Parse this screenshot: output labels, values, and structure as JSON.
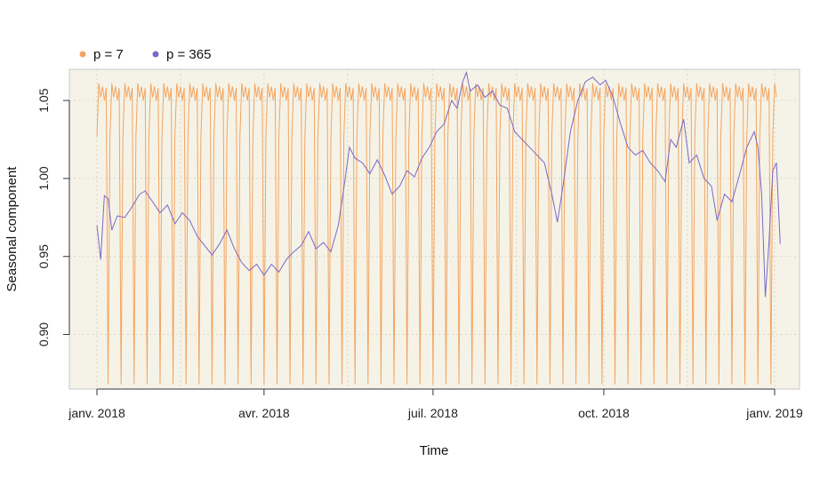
{
  "chart_data": {
    "type": "line",
    "title": "",
    "xlabel": "Time",
    "ylabel": "Seasonal component",
    "x_ticks": [
      "janv. 2018",
      "avr. 2018",
      "juil. 2018",
      "oct. 2018",
      "janv. 2019"
    ],
    "x_range": [
      "2018-01-01",
      "2019-01-01"
    ],
    "ylim": [
      0.865,
      1.07
    ],
    "y_ticks": [
      "0.90",
      "0.95",
      "1.00",
      "1.05"
    ],
    "grid": true,
    "legend_position": "top-left",
    "background": "#f5f3e7",
    "series": [
      {
        "name": "p = 7",
        "color": "#f4a460",
        "period_days": 7,
        "weekly_pattern": [
          1.027,
          1.061,
          1.052,
          1.059,
          1.05,
          1.058,
          0.868
        ]
      },
      {
        "name": "p = 365",
        "color": "#7b68c8",
        "points": [
          [
            "2018-01-01",
            0.97
          ],
          [
            "2018-01-03",
            0.948
          ],
          [
            "2018-01-05",
            0.989
          ],
          [
            "2018-01-07",
            0.987
          ],
          [
            "2018-01-09",
            0.967
          ],
          [
            "2018-01-12",
            0.976
          ],
          [
            "2018-01-16",
            0.975
          ],
          [
            "2018-01-20",
            0.982
          ],
          [
            "2018-01-24",
            0.99
          ],
          [
            "2018-01-27",
            0.992
          ],
          [
            "2018-01-31",
            0.985
          ],
          [
            "2018-02-04",
            0.978
          ],
          [
            "2018-02-08",
            0.983
          ],
          [
            "2018-02-12",
            0.971
          ],
          [
            "2018-02-16",
            0.978
          ],
          [
            "2018-02-20",
            0.973
          ],
          [
            "2018-02-24",
            0.963
          ],
          [
            "2018-02-28",
            0.957
          ],
          [
            "2018-03-04",
            0.951
          ],
          [
            "2018-03-08",
            0.958
          ],
          [
            "2018-03-12",
            0.967
          ],
          [
            "2018-03-16",
            0.955
          ],
          [
            "2018-03-20",
            0.946
          ],
          [
            "2018-03-24",
            0.941
          ],
          [
            "2018-03-28",
            0.945
          ],
          [
            "2018-04-01",
            0.938
          ],
          [
            "2018-04-05",
            0.945
          ],
          [
            "2018-04-09",
            0.94
          ],
          [
            "2018-04-13",
            0.948
          ],
          [
            "2018-04-17",
            0.953
          ],
          [
            "2018-04-21",
            0.957
          ],
          [
            "2018-04-25",
            0.966
          ],
          [
            "2018-04-29",
            0.955
          ],
          [
            "2018-05-03",
            0.959
          ],
          [
            "2018-05-07",
            0.953
          ],
          [
            "2018-05-11",
            0.97
          ],
          [
            "2018-05-14",
            0.994
          ],
          [
            "2018-05-17",
            1.02
          ],
          [
            "2018-05-20",
            1.013
          ],
          [
            "2018-05-24",
            1.01
          ],
          [
            "2018-05-28",
            1.003
          ],
          [
            "2018-06-01",
            1.012
          ],
          [
            "2018-06-05",
            1.002
          ],
          [
            "2018-06-09",
            0.99
          ],
          [
            "2018-06-13",
            0.995
          ],
          [
            "2018-06-17",
            1.005
          ],
          [
            "2018-06-21",
            1.001
          ],
          [
            "2018-06-25",
            1.013
          ],
          [
            "2018-06-29",
            1.02
          ],
          [
            "2018-07-03",
            1.03
          ],
          [
            "2018-07-07",
            1.035
          ],
          [
            "2018-07-11",
            1.05
          ],
          [
            "2018-07-14",
            1.045
          ],
          [
            "2018-07-17",
            1.062
          ],
          [
            "2018-07-19",
            1.068
          ],
          [
            "2018-07-21",
            1.056
          ],
          [
            "2018-07-25",
            1.06
          ],
          [
            "2018-07-29",
            1.052
          ],
          [
            "2018-08-02",
            1.056
          ],
          [
            "2018-08-06",
            1.047
          ],
          [
            "2018-08-10",
            1.045
          ],
          [
            "2018-08-14",
            1.03
          ],
          [
            "2018-08-18",
            1.025
          ],
          [
            "2018-08-22",
            1.02
          ],
          [
            "2018-08-26",
            1.015
          ],
          [
            "2018-08-30",
            1.01
          ],
          [
            "2018-09-03",
            0.99
          ],
          [
            "2018-09-06",
            0.972
          ],
          [
            "2018-09-09",
            0.995
          ],
          [
            "2018-09-13",
            1.03
          ],
          [
            "2018-09-17",
            1.05
          ],
          [
            "2018-09-21",
            1.062
          ],
          [
            "2018-09-25",
            1.065
          ],
          [
            "2018-09-29",
            1.06
          ],
          [
            "2018-10-02",
            1.063
          ],
          [
            "2018-10-06",
            1.052
          ],
          [
            "2018-10-10",
            1.035
          ],
          [
            "2018-10-14",
            1.02
          ],
          [
            "2018-10-18",
            1.015
          ],
          [
            "2018-10-22",
            1.018
          ],
          [
            "2018-10-26",
            1.01
          ],
          [
            "2018-10-30",
            1.005
          ],
          [
            "2018-11-03",
            0.998
          ],
          [
            "2018-11-06",
            1.025
          ],
          [
            "2018-11-09",
            1.02
          ],
          [
            "2018-11-13",
            1.038
          ],
          [
            "2018-11-16",
            1.01
          ],
          [
            "2018-11-20",
            1.015
          ],
          [
            "2018-11-24",
            1.0
          ],
          [
            "2018-11-28",
            0.995
          ],
          [
            "2018-12-01",
            0.973
          ],
          [
            "2018-12-05",
            0.99
          ],
          [
            "2018-12-09",
            0.985
          ],
          [
            "2018-12-13",
            1.002
          ],
          [
            "2018-12-17",
            1.02
          ],
          [
            "2018-12-21",
            1.03
          ],
          [
            "2018-12-23",
            1.02
          ],
          [
            "2018-12-25",
            0.99
          ],
          [
            "2018-12-27",
            0.924
          ],
          [
            "2018-12-29",
            0.96
          ],
          [
            "2018-12-31",
            1.005
          ],
          [
            "2019-01-02",
            1.01
          ],
          [
            "2019-01-04",
            0.958
          ]
        ]
      }
    ]
  }
}
